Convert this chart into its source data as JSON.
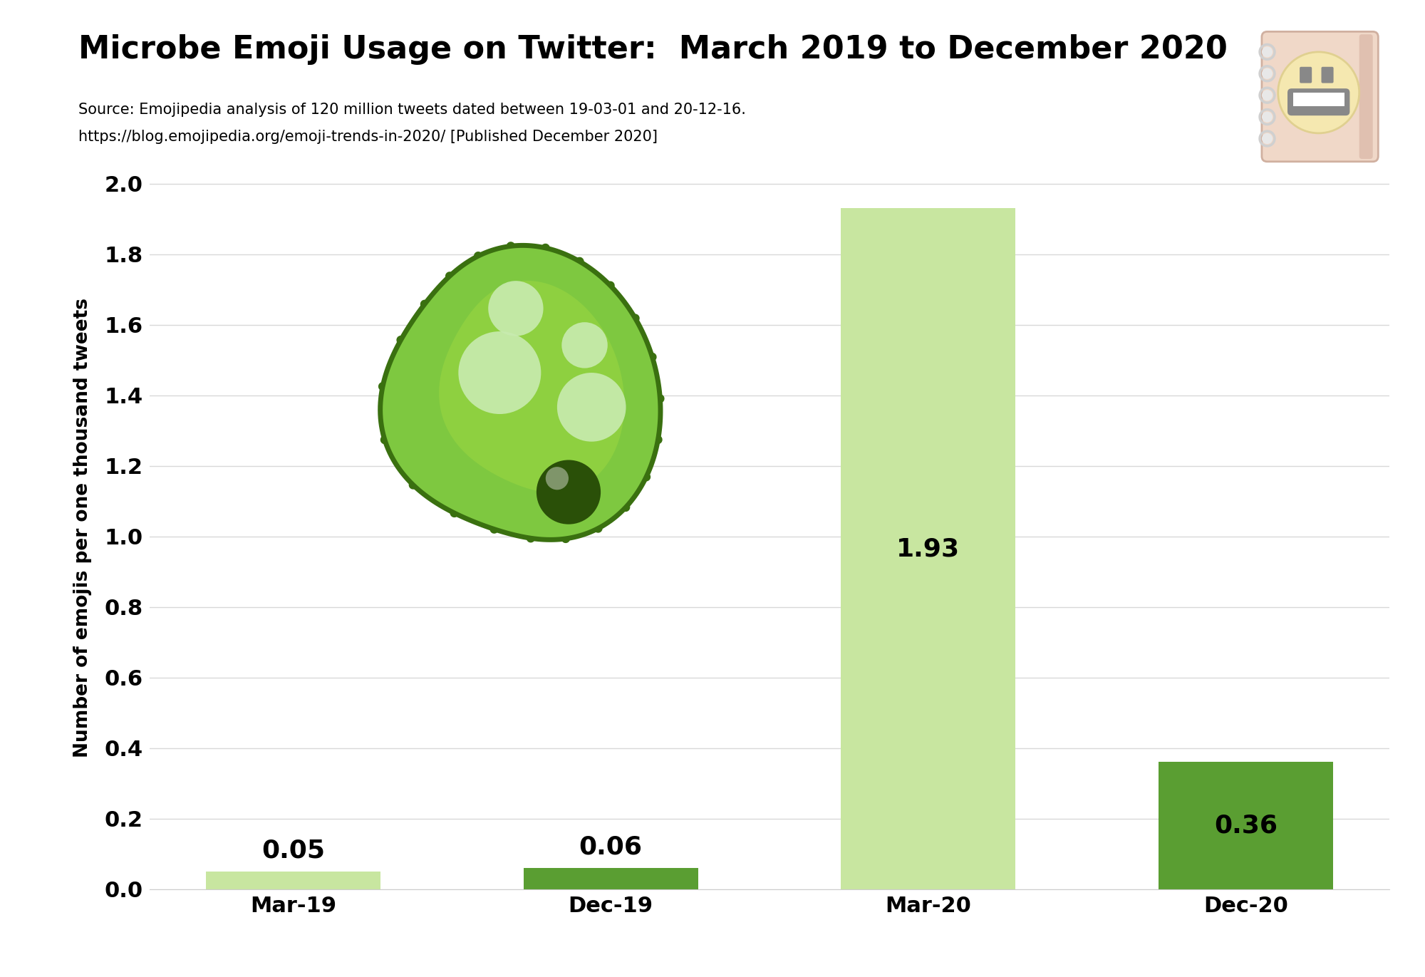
{
  "categories": [
    "Mar-19",
    "Dec-19",
    "Mar-20",
    "Dec-20"
  ],
  "values": [
    0.05,
    0.06,
    1.93,
    0.36
  ],
  "bar_colors": [
    "#c8e6a0",
    "#5a9e32",
    "#c8e6a0",
    "#5a9e32"
  ],
  "title": "Microbe Emoji Usage on Twitter:  March 2019 to December 2020",
  "subtitle_line1": "Source: Emojipedia analysis of 120 million tweets dated between 19-03-01 and 20-12-16.",
  "subtitle_line2": "https://blog.emojipedia.org/emoji-trends-in-2020/ [Published December 2020]",
  "ylabel": "Number of emojis per one thousand tweets",
  "ylim": [
    0,
    2.05
  ],
  "yticks": [
    0.0,
    0.2,
    0.4,
    0.6,
    0.8,
    1.0,
    1.2,
    1.4,
    1.6,
    1.8,
    2.0
  ],
  "background_color": "#ffffff",
  "grid_color": "#d8d8d8",
  "title_fontsize": 32,
  "subtitle_fontsize": 15,
  "ylabel_fontsize": 19,
  "tick_fontsize": 22,
  "label_fontsize": 26,
  "bar_label_color": "#000000",
  "bar_width": 0.55
}
